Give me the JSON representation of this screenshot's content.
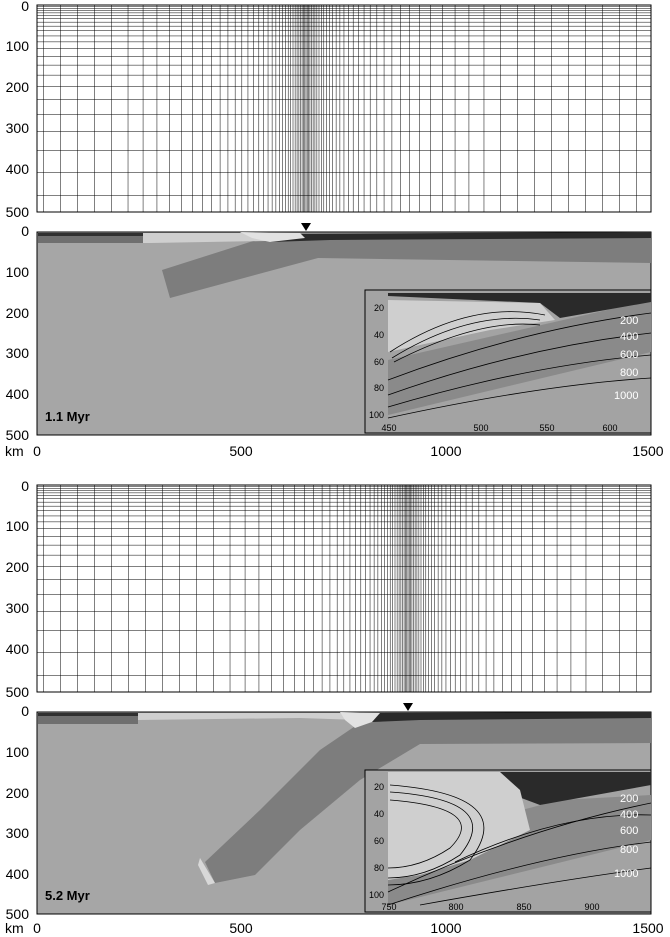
{
  "colors": {
    "mantle": "#a6a6a6",
    "slab": "#7d7d7d",
    "lithosphere_top": "#3a3a3a",
    "crust_dark": "#262626",
    "sediment": "#d8d8d8",
    "inset_bg": "#9a9a9a",
    "grid_line": "#000000"
  },
  "axis": {
    "unit": "km",
    "x_ticks": [
      "0",
      "500",
      "1000",
      "1500"
    ],
    "y_ticks": [
      "0",
      "100",
      "200",
      "300",
      "400",
      "500"
    ],
    "y_extra_tick": "0"
  },
  "marker_icon": "triangle-down-icon",
  "panels": [
    {
      "time_label": "1.1 Myr",
      "inset": {
        "x_ticks": [
          "450",
          "500",
          "550",
          "600"
        ],
        "y_ticks": [
          "20",
          "40",
          "60",
          "80",
          "100"
        ],
        "contours": [
          "200",
          "400",
          "600",
          "800",
          "1000"
        ]
      }
    },
    {
      "time_label": "5.2 Myr",
      "inset": {
        "x_ticks": [
          "750",
          "800",
          "850",
          "900"
        ],
        "y_ticks": [
          "20",
          "40",
          "60",
          "80",
          "100"
        ],
        "contours": [
          "200",
          "400",
          "600",
          "800",
          "1000"
        ]
      }
    }
  ]
}
